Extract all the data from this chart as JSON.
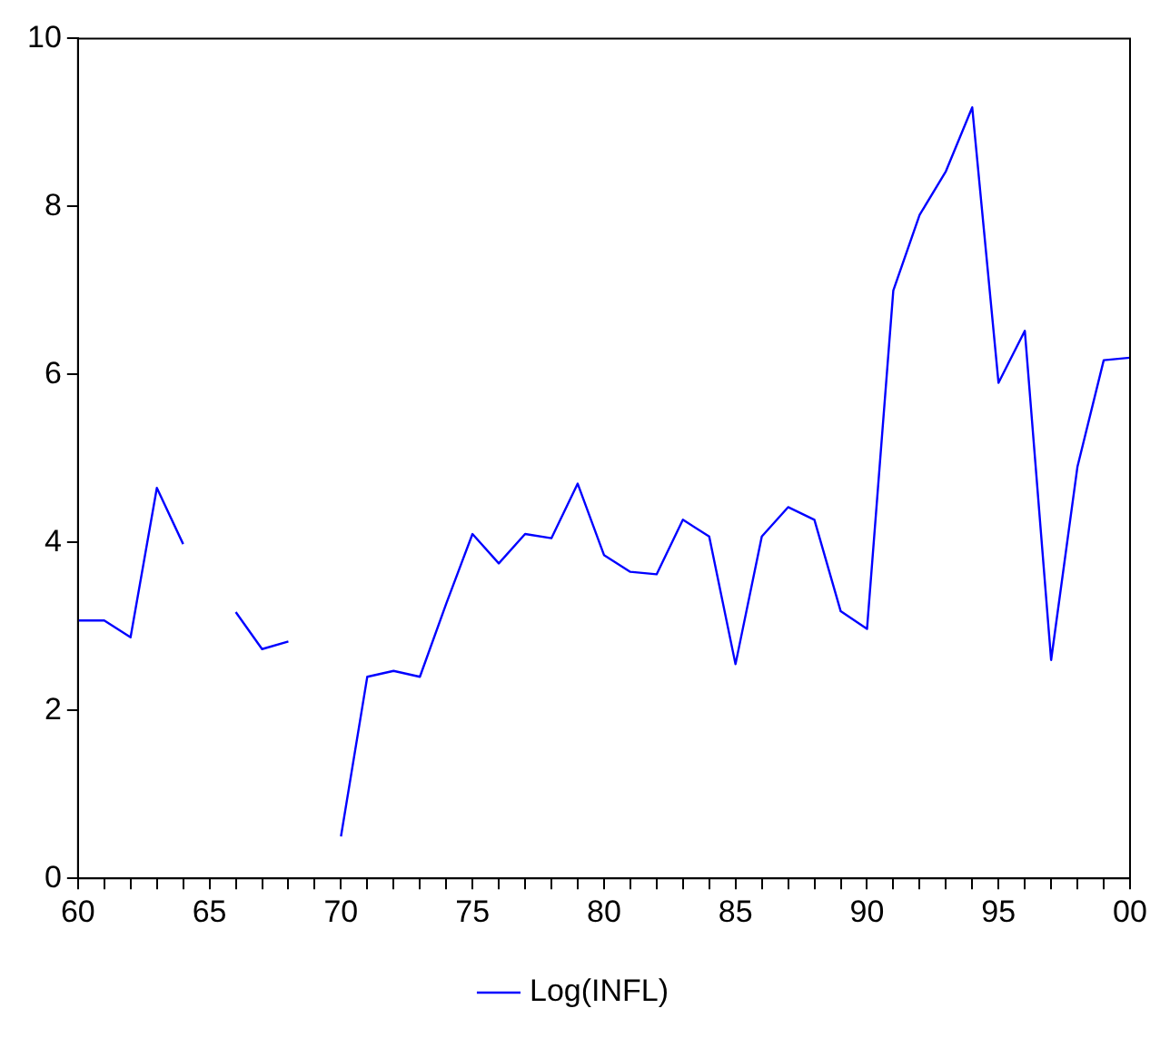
{
  "chart_data": {
    "type": "line",
    "x": [
      1960,
      1961,
      1962,
      1963,
      1964,
      1965,
      1966,
      1967,
      1968,
      1969,
      1970,
      1971,
      1972,
      1973,
      1974,
      1975,
      1976,
      1977,
      1978,
      1979,
      1980,
      1981,
      1982,
      1983,
      1984,
      1985,
      1986,
      1987,
      1988,
      1989,
      1990,
      1991,
      1992,
      1993,
      1994,
      1995,
      1996,
      1997,
      1998,
      1999,
      2000
    ],
    "series": [
      {
        "name": "Log(INFL)",
        "color": "#0000ff",
        "values": [
          3.07,
          3.07,
          2.87,
          4.65,
          3.98,
          null,
          3.17,
          2.73,
          2.82,
          null,
          0.5,
          2.4,
          2.47,
          2.4,
          3.27,
          4.1,
          3.75,
          4.1,
          4.05,
          4.7,
          3.85,
          3.65,
          3.62,
          4.27,
          4.07,
          2.55,
          4.07,
          4.42,
          4.27,
          3.18,
          2.97,
          7.0,
          7.9,
          8.42,
          9.18,
          5.9,
          6.52,
          2.6,
          4.9,
          6.17,
          6.2
        ]
      }
    ],
    "xlim": [
      1960,
      2000
    ],
    "xticks": [
      {
        "value": 1960,
        "label": "60"
      },
      {
        "value": 1961,
        "label": null
      },
      {
        "value": 1962,
        "label": null
      },
      {
        "value": 1963,
        "label": null
      },
      {
        "value": 1964,
        "label": null
      },
      {
        "value": 1965,
        "label": "65"
      },
      {
        "value": 1966,
        "label": null
      },
      {
        "value": 1967,
        "label": null
      },
      {
        "value": 1968,
        "label": null
      },
      {
        "value": 1969,
        "label": null
      },
      {
        "value": 1970,
        "label": "70"
      },
      {
        "value": 1971,
        "label": null
      },
      {
        "value": 1972,
        "label": null
      },
      {
        "value": 1973,
        "label": null
      },
      {
        "value": 1974,
        "label": null
      },
      {
        "value": 1975,
        "label": "75"
      },
      {
        "value": 1976,
        "label": null
      },
      {
        "value": 1977,
        "label": null
      },
      {
        "value": 1978,
        "label": null
      },
      {
        "value": 1979,
        "label": null
      },
      {
        "value": 1980,
        "label": "80"
      },
      {
        "value": 1981,
        "label": null
      },
      {
        "value": 1982,
        "label": null
      },
      {
        "value": 1983,
        "label": null
      },
      {
        "value": 1984,
        "label": null
      },
      {
        "value": 1985,
        "label": "85"
      },
      {
        "value": 1986,
        "label": null
      },
      {
        "value": 1987,
        "label": null
      },
      {
        "value": 1988,
        "label": null
      },
      {
        "value": 1989,
        "label": null
      },
      {
        "value": 1990,
        "label": "90"
      },
      {
        "value": 1991,
        "label": null
      },
      {
        "value": 1992,
        "label": null
      },
      {
        "value": 1993,
        "label": null
      },
      {
        "value": 1994,
        "label": null
      },
      {
        "value": 1995,
        "label": "95"
      },
      {
        "value": 1996,
        "label": null
      },
      {
        "value": 1997,
        "label": null
      },
      {
        "value": 1998,
        "label": null
      },
      {
        "value": 1999,
        "label": null
      },
      {
        "value": 2000,
        "label": "00"
      }
    ],
    "ylim": [
      0,
      10
    ],
    "yticks": [
      0,
      2,
      4,
      6,
      8,
      10
    ],
    "grid": false,
    "legend": "bottom",
    "marker": "none",
    "line_style": "solid"
  }
}
